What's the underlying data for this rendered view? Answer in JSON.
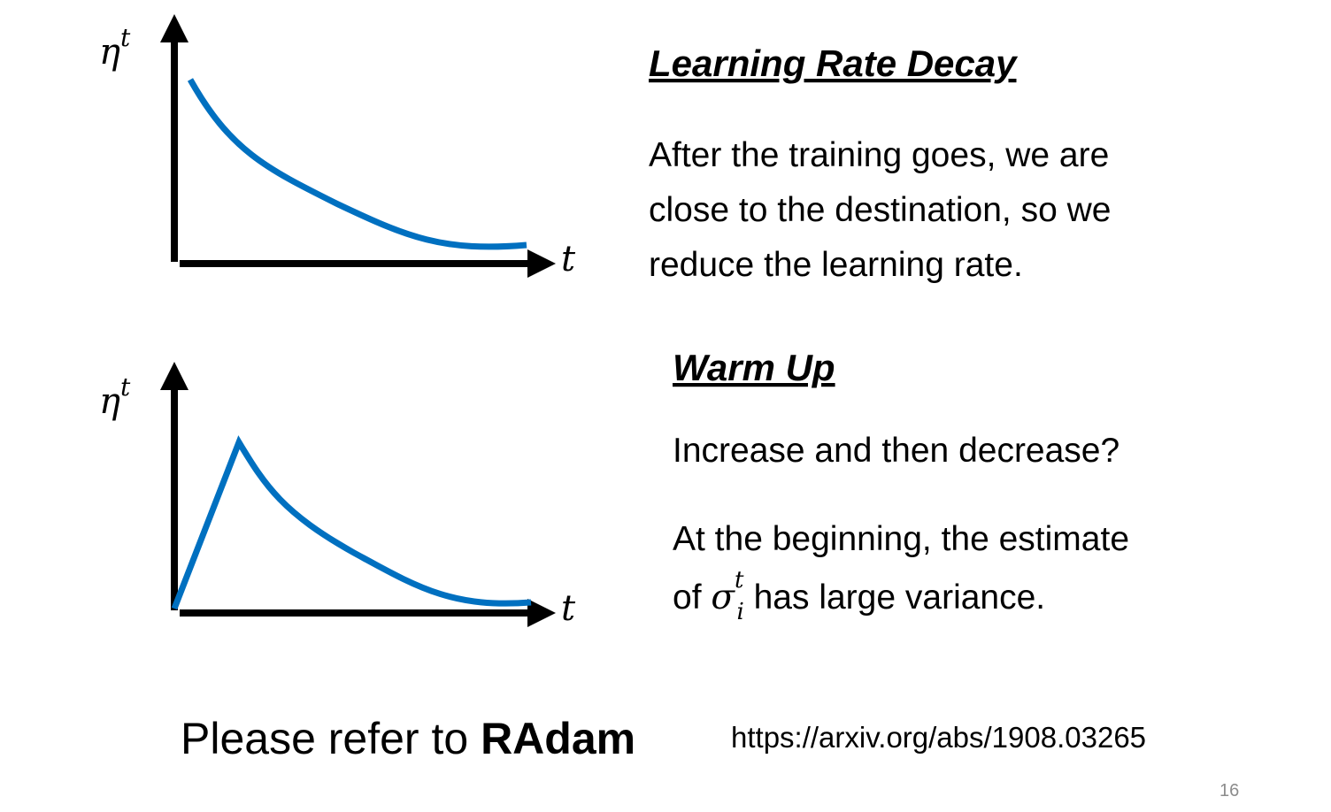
{
  "diagrams": [
    {
      "y_label": {
        "base": "η",
        "sup": "t"
      },
      "x_label": "t"
    },
    {
      "y_label": {
        "base": "η",
        "sup": "t"
      },
      "x_label": "t"
    }
  ],
  "sections": [
    {
      "title": "Learning Rate Decay",
      "lines": [
        "After the training goes, we are",
        "close to the destination, so we",
        "reduce the learning rate."
      ]
    },
    {
      "title": "Warm Up",
      "line_1": "Increase and then decrease?",
      "line_2": "At the beginning, the estimate",
      "line_3": {
        "before": "of ",
        "symbol": "σ",
        "sub": "i",
        "sup": "t",
        "after": " has large variance."
      }
    }
  ],
  "footer": {
    "text": "Please refer to ",
    "bold": "RAdam",
    "url": "https://arxiv.org/abs/1908.03265"
  },
  "page_number": "16"
}
